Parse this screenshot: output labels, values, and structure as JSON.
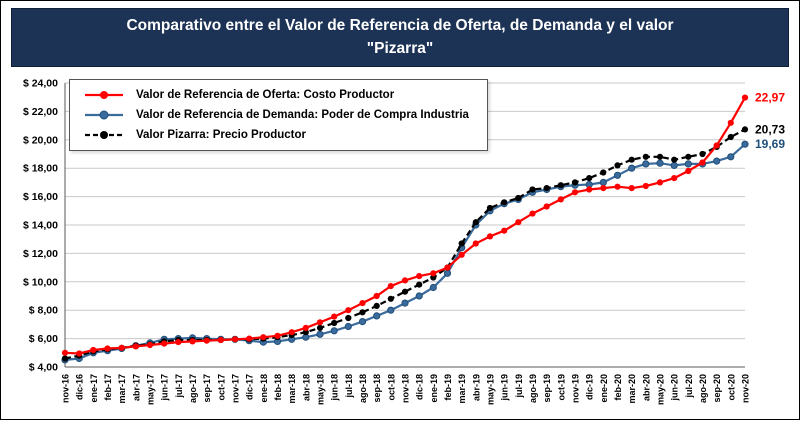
{
  "title": {
    "line1": "Comparativo entre el Valor de Referencia de Oferta, de Demanda y el valor",
    "line2": "\"Pizarra\""
  },
  "chart_data": {
    "type": "line",
    "title": "Comparativo entre el Valor de Referencia de Oferta, de Demanda y el valor \"Pizarra\"",
    "xlabel": "",
    "ylabel": "",
    "ylim": [
      4,
      24
    ],
    "ytick_step": 2,
    "ytick_labels": [
      "$ 4,00",
      "$ 6,00",
      "$ 8,00",
      "$ 10,00",
      "$ 12,00",
      "$ 14,00",
      "$ 16,00",
      "$ 18,00",
      "$ 20,00",
      "$ 22,00",
      "$ 24,00"
    ],
    "grid": true,
    "legend_position": "top-left",
    "categories": [
      "nov-16",
      "dic-16",
      "ene-17",
      "feb-17",
      "mar-17",
      "abr-17",
      "may-17",
      "jun-17",
      "jul-17",
      "ago-17",
      "sep-17",
      "oct-17",
      "nov-17",
      "dic-17",
      "ene-18",
      "feb-18",
      "mar-18",
      "abr-18",
      "may-18",
      "jun-18",
      "jul-18",
      "ago-18",
      "sep-18",
      "oct-18",
      "nov-18",
      "dic-18",
      "ene-19",
      "feb-19",
      "mar-19",
      "abr-19",
      "may-19",
      "jun-19",
      "jul-19",
      "ago-19",
      "sep-19",
      "oct-19",
      "nov-19",
      "dic-19",
      "ene-20",
      "feb-20",
      "mar-20",
      "abr-20",
      "may-20",
      "jun-20",
      "jul-20",
      "ago-20",
      "sep-20",
      "oct-20",
      "nov-20"
    ],
    "series": [
      {
        "name": "Valor de Referencia de Oferta: Costo Productor",
        "color": "#FF0000",
        "style": "solid",
        "values": [
          5.0,
          4.95,
          5.2,
          5.3,
          5.35,
          5.45,
          5.55,
          5.65,
          5.75,
          5.8,
          5.85,
          5.9,
          5.95,
          6.0,
          6.1,
          6.2,
          6.45,
          6.75,
          7.15,
          7.55,
          8.0,
          8.5,
          9.0,
          9.7,
          10.1,
          10.4,
          10.6,
          11.0,
          11.9,
          12.7,
          13.2,
          13.6,
          14.2,
          14.8,
          15.3,
          15.8,
          16.3,
          16.5,
          16.6,
          16.7,
          16.6,
          16.75,
          17.0,
          17.3,
          17.8,
          18.4,
          19.6,
          21.2,
          22.97
        ]
      },
      {
        "name": "Valor de Referencia de Demanda: Poder de Compra Industria",
        "color": "#3A6B9C",
        "marker_stroke": "#1F4E79",
        "style": "solid",
        "values": [
          4.5,
          4.6,
          5.0,
          5.15,
          5.3,
          5.5,
          5.7,
          5.95,
          6.0,
          6.05,
          6.0,
          5.95,
          5.95,
          5.85,
          5.75,
          5.8,
          5.95,
          6.1,
          6.3,
          6.55,
          6.85,
          7.2,
          7.6,
          8.0,
          8.5,
          9.0,
          9.6,
          10.6,
          12.4,
          14.0,
          15.0,
          15.5,
          15.8,
          16.3,
          16.5,
          16.7,
          16.8,
          16.85,
          17.0,
          17.5,
          18.0,
          18.3,
          18.35,
          18.2,
          18.3,
          18.3,
          18.5,
          18.8,
          19.69
        ]
      },
      {
        "name": "Valor Pizarra: Precio Productor",
        "color": "#000000",
        "style": "dashed",
        "values": [
          4.6,
          4.8,
          5.1,
          5.25,
          5.35,
          5.5,
          5.6,
          5.8,
          5.9,
          5.9,
          5.9,
          5.9,
          5.95,
          5.95,
          6.0,
          6.1,
          6.25,
          6.45,
          6.75,
          7.1,
          7.45,
          7.85,
          8.3,
          8.8,
          9.3,
          9.8,
          10.3,
          11.0,
          12.7,
          14.2,
          15.2,
          15.6,
          15.9,
          16.5,
          16.6,
          16.8,
          17.0,
          17.3,
          17.7,
          18.2,
          18.6,
          18.8,
          18.8,
          18.6,
          18.8,
          19.0,
          19.5,
          20.2,
          20.73
        ]
      }
    ],
    "end_labels": [
      {
        "text": "22,97",
        "value": 22.97,
        "color": "#FF0000"
      },
      {
        "text": "20,73",
        "value": 20.73,
        "color": "#000000"
      },
      {
        "text": "19,69",
        "value": 19.69,
        "color": "#1F4E79"
      }
    ]
  }
}
